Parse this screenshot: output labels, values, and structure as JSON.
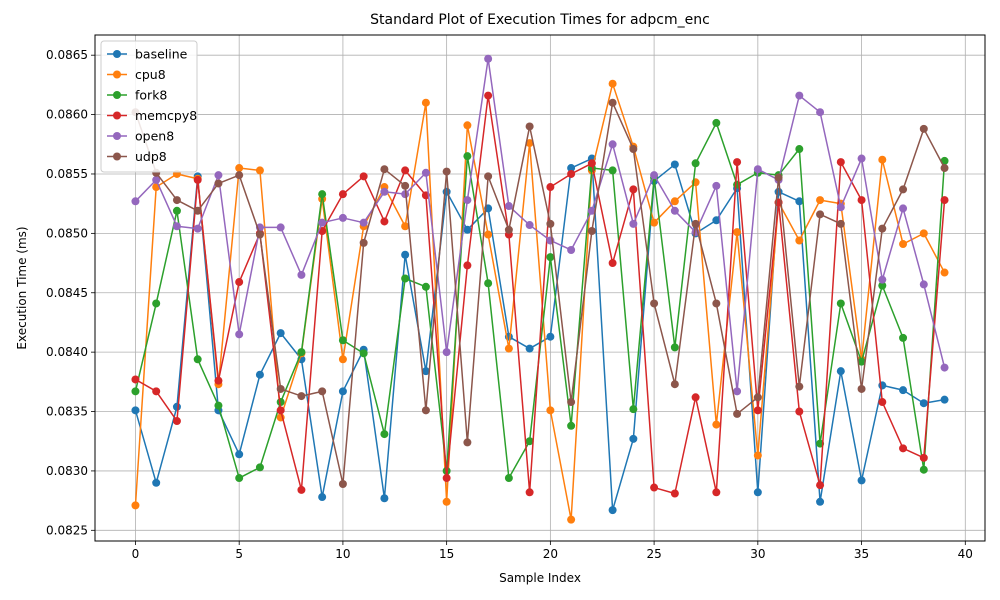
{
  "chart_data": {
    "type": "line",
    "title": "Standard Plot of Execution Times for adpcm_enc",
    "xlabel": "Sample Index",
    "ylabel": "Execution Time (ms)",
    "xlim": [
      -1.95,
      40.95
    ],
    "ylim": [
      0.08241,
      0.08667
    ],
    "x_ticks": [
      0,
      5,
      10,
      15,
      20,
      25,
      30,
      35,
      40
    ],
    "x_tick_labels": [
      "0",
      "5",
      "10",
      "15",
      "20",
      "25",
      "30",
      "35",
      "40"
    ],
    "y_ticks": [
      0.0825,
      0.083,
      0.0835,
      0.084,
      0.0845,
      0.085,
      0.0855,
      0.086,
      0.0865
    ],
    "y_tick_labels": [
      "0.0825",
      "0.0830",
      "0.0835",
      "0.0840",
      "0.0845",
      "0.0850",
      "0.0855",
      "0.0860",
      "0.0865"
    ],
    "grid": true,
    "legend_position": "top-left",
    "x": [
      0,
      1,
      2,
      3,
      4,
      5,
      6,
      7,
      8,
      9,
      10,
      11,
      12,
      13,
      14,
      15,
      16,
      17,
      18,
      19,
      20,
      21,
      22,
      23,
      24,
      25,
      26,
      27,
      28,
      29,
      30,
      31,
      32,
      33,
      34,
      35,
      36,
      37,
      38,
      39
    ],
    "series": [
      {
        "name": "baseline",
        "color": "#1f77b4",
        "values": [
          0.08351,
          0.0829,
          0.08354,
          0.08548,
          0.08351,
          0.08314,
          0.08381,
          0.08416,
          0.08394,
          0.08278,
          0.08367,
          0.08402,
          0.08277,
          0.08482,
          0.08384,
          0.08535,
          0.08503,
          0.08521,
          0.08413,
          0.08403,
          0.08413,
          0.08555,
          0.08563,
          0.08267,
          0.08327,
          0.08544,
          0.08558,
          0.085,
          0.08511,
          0.08538,
          0.08282,
          0.08535,
          0.08527,
          0.08274,
          0.08384,
          0.08292,
          0.08372,
          0.08368,
          0.08357,
          0.0836
        ]
      },
      {
        "name": "cpu8",
        "color": "#ff7f0e",
        "values": [
          0.08271,
          0.08539,
          0.0855,
          0.08546,
          0.08373,
          0.08555,
          0.08553,
          0.08345,
          0.08399,
          0.08529,
          0.08394,
          0.08506,
          0.08539,
          0.08506,
          0.0861,
          0.08274,
          0.08591,
          0.08499,
          0.08403,
          0.08576,
          0.08351,
          0.08259,
          0.08553,
          0.08626,
          0.08573,
          0.08509,
          0.08527,
          0.08543,
          0.08339,
          0.08501,
          0.08313,
          0.08526,
          0.08494,
          0.08528,
          0.08525,
          0.08394,
          0.08562,
          0.08491,
          0.085,
          0.08467
        ]
      },
      {
        "name": "fork8",
        "color": "#2ca02c",
        "values": [
          0.08367,
          0.08441,
          0.08519,
          0.08394,
          0.08355,
          0.08294,
          0.08303,
          0.08358,
          0.084,
          0.08533,
          0.0841,
          0.08399,
          0.08331,
          0.08462,
          0.08455,
          0.083,
          0.08565,
          0.08458,
          0.08294,
          0.08325,
          0.0848,
          0.08338,
          0.08555,
          0.08553,
          0.08352,
          0.08547,
          0.08404,
          0.08559,
          0.08593,
          0.08541,
          0.08551,
          0.08549,
          0.08571,
          0.08323,
          0.08441,
          0.08392,
          0.08456,
          0.08412,
          0.08301,
          0.08561
        ]
      },
      {
        "name": "memcpy8",
        "color": "#d62728",
        "values": [
          0.08377,
          0.08367,
          0.08342,
          0.08545,
          0.08376,
          0.08459,
          0.085,
          0.08351,
          0.08284,
          0.08502,
          0.08533,
          0.08548,
          0.0851,
          0.08553,
          0.08532,
          0.08294,
          0.08473,
          0.08616,
          0.08499,
          0.08282,
          0.08539,
          0.0855,
          0.08559,
          0.08475,
          0.08537,
          0.08286,
          0.08281,
          0.08362,
          0.08282,
          0.0856,
          0.08351,
          0.08526,
          0.0835,
          0.08288,
          0.0856,
          0.08528,
          0.08358,
          0.08319,
          0.08311,
          0.08528
        ]
      },
      {
        "name": "open8",
        "color": "#9467bd",
        "values": [
          0.08527,
          0.08545,
          0.08506,
          0.08504,
          0.08549,
          0.08415,
          0.08505,
          0.08505,
          0.08465,
          0.08509,
          0.08513,
          0.08509,
          0.08535,
          0.08533,
          0.08551,
          0.084,
          0.08528,
          0.08647,
          0.08523,
          0.08507,
          0.08494,
          0.08486,
          0.08519,
          0.08575,
          0.08508,
          0.08549,
          0.08519,
          0.08501,
          0.0854,
          0.08367,
          0.08554,
          0.08545,
          0.08616,
          0.08602,
          0.08522,
          0.08563,
          0.08461,
          0.08521,
          0.08457,
          0.08387
        ]
      },
      {
        "name": "udp8",
        "color": "#8c564b",
        "values": [
          0.08602,
          0.08551,
          0.08528,
          0.08519,
          0.08542,
          0.08549,
          0.08499,
          0.08369,
          0.08363,
          0.08367,
          0.08289,
          0.08492,
          0.08554,
          0.0854,
          0.08351,
          0.08552,
          0.08324,
          0.08548,
          0.08503,
          0.0859,
          0.08508,
          0.08358,
          0.08502,
          0.0861,
          0.08571,
          0.08441,
          0.08373,
          0.08508,
          0.08441,
          0.08348,
          0.08362,
          0.08547,
          0.08371,
          0.08516,
          0.08508,
          0.08369,
          0.08504,
          0.08537,
          0.08588,
          0.08555
        ]
      }
    ]
  }
}
